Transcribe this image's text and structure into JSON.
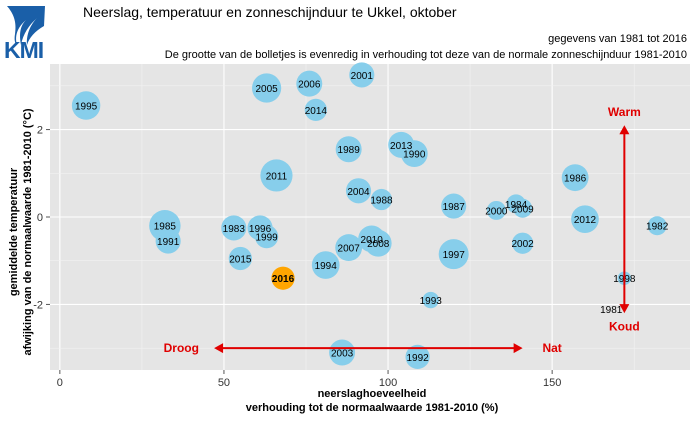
{
  "header": {
    "title": "Neerslag, temperatuur en zonneschijnduur te Ukkel, oktober",
    "subtitle_period": "gegevens van 1981 tot 2016",
    "subtitle_size_note": "De grootte van de bolletjes is evenredig in verhouding tot deze van de normale zonneschijnduur 1981-2010",
    "logo_text": "KMI"
  },
  "colors": {
    "panel": "#e5e5e5",
    "grid_major": "#ffffff",
    "grid_minor": "#f2f2f2",
    "bubble": "#87ceeb",
    "highlight_bubble": "#ffa500",
    "highlight_label": "#ff0000",
    "arrow": "#e00000",
    "logo_blue": "#1a5fa8"
  },
  "chart_data": {
    "type": "scatter",
    "xlabel_line1": "neerslaghoeveelheid",
    "xlabel_line2": "verhouding tot de normaalwaarde 1981-2010 (%)",
    "ylabel_line1": "gemiddelde temperatuur",
    "ylabel_line2": "afwijking van de normaalwaarde 1981-2010 (°C)",
    "xlim": [
      -3,
      192
    ],
    "ylim": [
      -3.5,
      3.5
    ],
    "xticks": [
      0,
      50,
      100,
      150
    ],
    "yticks": [
      -2,
      0,
      2
    ],
    "grid": true,
    "highlight_year": "2016",
    "points": [
      {
        "year": "1981",
        "x": 168,
        "y": -2.1,
        "size": 0.0
      },
      {
        "year": "1982",
        "x": 182,
        "y": -0.2,
        "size": 0.4
      },
      {
        "year": "1983",
        "x": 53,
        "y": -0.25,
        "size": 0.7
      },
      {
        "year": "1984",
        "x": 139,
        "y": 0.3,
        "size": 0.4
      },
      {
        "year": "1985",
        "x": 32,
        "y": -0.2,
        "size": 1.1
      },
      {
        "year": "1986",
        "x": 157,
        "y": 0.9,
        "size": 0.8
      },
      {
        "year": "1987",
        "x": 120,
        "y": 0.25,
        "size": 0.7
      },
      {
        "year": "1988",
        "x": 98,
        "y": 0.4,
        "size": 0.5
      },
      {
        "year": "1989",
        "x": 88,
        "y": 1.55,
        "size": 0.75
      },
      {
        "year": "1990",
        "x": 108,
        "y": 1.45,
        "size": 0.8
      },
      {
        "year": "1991",
        "x": 33,
        "y": -0.55,
        "size": 0.7
      },
      {
        "year": "1992",
        "x": 109,
        "y": -3.2,
        "size": 0.65
      },
      {
        "year": "1993",
        "x": 113,
        "y": -1.9,
        "size": 0.3
      },
      {
        "year": "1994",
        "x": 81,
        "y": -1.1,
        "size": 0.85
      },
      {
        "year": "1995",
        "x": 8,
        "y": 2.55,
        "size": 0.9
      },
      {
        "year": "1996",
        "x": 61,
        "y": -0.25,
        "size": 0.7
      },
      {
        "year": "1997",
        "x": 120,
        "y": -0.85,
        "size": 1.0
      },
      {
        "year": "1998",
        "x": 172,
        "y": -1.4,
        "size": 0.2
      },
      {
        "year": "1999",
        "x": 63,
        "y": -0.45,
        "size": 0.6
      },
      {
        "year": "2000",
        "x": 133,
        "y": 0.15,
        "size": 0.4
      },
      {
        "year": "2001",
        "x": 92,
        "y": 3.25,
        "size": 0.7
      },
      {
        "year": "2002",
        "x": 141,
        "y": -0.6,
        "size": 0.5
      },
      {
        "year": "2003",
        "x": 86,
        "y": -3.1,
        "size": 0.75
      },
      {
        "year": "2004",
        "x": 91,
        "y": 0.6,
        "size": 0.7
      },
      {
        "year": "2005",
        "x": 63,
        "y": 2.95,
        "size": 0.95
      },
      {
        "year": "2006",
        "x": 76,
        "y": 3.05,
        "size": 0.75
      },
      {
        "year": "2007",
        "x": 88,
        "y": -0.7,
        "size": 0.8
      },
      {
        "year": "2008",
        "x": 97,
        "y": -0.6,
        "size": 0.8
      },
      {
        "year": "2009",
        "x": 141,
        "y": 0.2,
        "size": 0.4
      },
      {
        "year": "2010",
        "x": 95,
        "y": -0.5,
        "size": 0.8
      },
      {
        "year": "2011",
        "x": 66,
        "y": 0.95,
        "size": 1.15
      },
      {
        "year": "2012",
        "x": 160,
        "y": -0.05,
        "size": 0.85
      },
      {
        "year": "2013",
        "x": 104,
        "y": 1.65,
        "size": 0.75
      },
      {
        "year": "2014",
        "x": 78,
        "y": 2.45,
        "size": 0.55
      },
      {
        "year": "2015",
        "x": 55,
        "y": -0.95,
        "size": 0.6
      },
      {
        "year": "2016",
        "x": 68,
        "y": -1.4,
        "size": 0.6
      }
    ],
    "annotations": {
      "droog": "Droog",
      "nat": "Nat",
      "warm": "Warm",
      "koud": "Koud",
      "h_arrow": {
        "x_from": 47,
        "x_to": 141,
        "y": -3.0,
        "label_left_x": 37,
        "label_right_x": 150
      },
      "v_arrow": {
        "x": 172,
        "y_from": -2.2,
        "y_to": 2.1,
        "label_top_y": 2.4,
        "label_bottom_y": -2.5
      }
    }
  }
}
